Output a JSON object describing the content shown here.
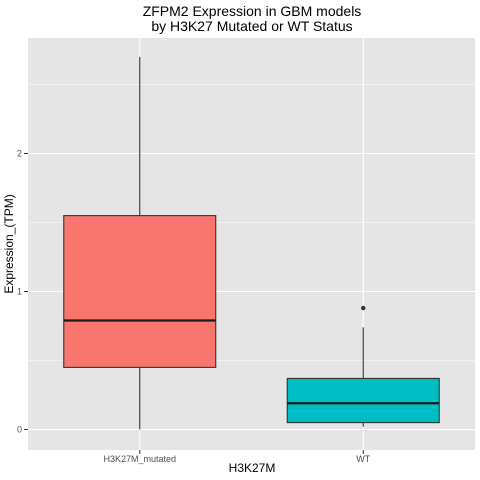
{
  "chart_data": {
    "type": "boxplot",
    "title": [
      "ZFPM2 Expression in GBM models",
      "by H3K27 Mutated or WT Status"
    ],
    "xlabel": "H3K27M",
    "ylabel": "Expression_(TPM)",
    "ylim": [
      -0.15,
      2.85
    ],
    "yticks": [
      0,
      1,
      2
    ],
    "grid": true,
    "legend": "none",
    "categories": [
      "H3K27M_mutated",
      "WT"
    ],
    "boxes": [
      {
        "category": "H3K27M_mutated",
        "color": "#F8766D",
        "min": 0.0,
        "q1": 0.45,
        "median": 0.79,
        "q3": 1.55,
        "max": 2.7,
        "outliers": []
      },
      {
        "category": "WT",
        "color": "#00BFC4",
        "min": 0.02,
        "q1": 0.05,
        "median": 0.19,
        "q3": 0.37,
        "max": 0.74,
        "outliers": [
          0.88
        ]
      }
    ],
    "panel_background": "#E5E5E5",
    "grid_color": "#FFFFFF"
  }
}
